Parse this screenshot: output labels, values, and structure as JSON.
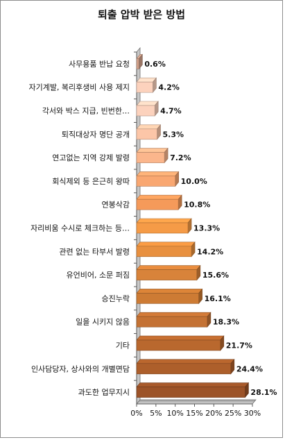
{
  "chart_data": {
    "type": "bar",
    "orientation": "horizontal",
    "title": "퇴출 압박 받은 방법",
    "categories": [
      "사무용품 반납 요청",
      "자기계발, 복리후생비 사용 제지",
      "각서와 박스 지급, 빈번한…",
      "퇴직대상자 명단 공개",
      "연고없는 지역 강제 발령",
      "회식제외 등 은근히 왕따",
      "연봉삭감",
      "자리비움 수시로 체크하는 등…",
      "관련 없는 타부서 발령",
      "유언비어, 소문 퍼짐",
      "승진누락",
      "일을 시키지 않음",
      "기타",
      "인사담당자, 상사와의 개별면담",
      "과도한 업무지시"
    ],
    "values": [
      0.6,
      4.2,
      4.7,
      5.3,
      7.2,
      10.0,
      10.8,
      13.3,
      14.2,
      15.6,
      16.1,
      18.3,
      21.7,
      24.4,
      28.1
    ],
    "value_labels": [
      "0.6%",
      "4.2%",
      "4.7%",
      "5.3%",
      "7.2%",
      "10.0%",
      "10.8%",
      "13.3%",
      "14.2%",
      "15.6%",
      "16.1%",
      "18.3%",
      "21.7%",
      "24.4%",
      "28.1%"
    ],
    "bar_colors": [
      "#d4a38c",
      "#fcd2bd",
      "#fcd2bd",
      "#fcc6a8",
      "#fbb68c",
      "#f9a771",
      "#f59a5a",
      "#f59b47",
      "#e8903f",
      "#d8833a",
      "#cd7b34",
      "#c47234",
      "#b9682e",
      "#ad5f2b",
      "#9c5328"
    ],
    "xlim": [
      0,
      30
    ],
    "xticks": [
      0,
      5,
      10,
      15,
      20,
      25,
      30
    ],
    "xtick_labels": [
      "0%",
      "5%",
      "10%",
      "15%",
      "20%",
      "25%",
      "30%"
    ],
    "grid": false,
    "legend": "none"
  }
}
